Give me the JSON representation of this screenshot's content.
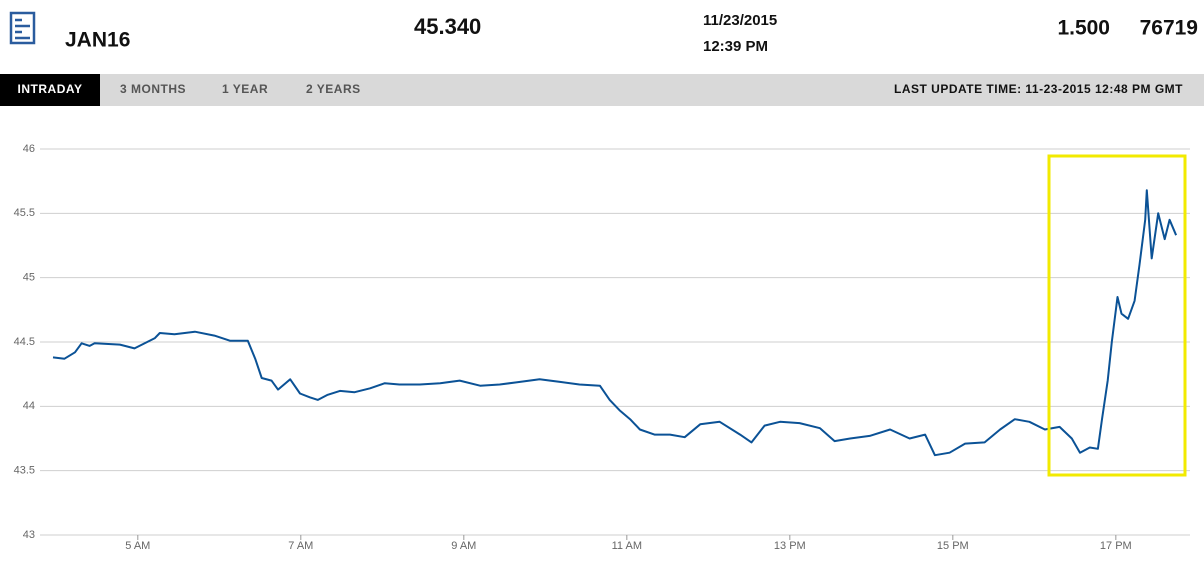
{
  "header": {
    "symbol": "JAN16",
    "price": "45.340",
    "date": "11/23/2015",
    "time": "12:39 PM",
    "change": "1.500",
    "volume": "76719"
  },
  "tabs": [
    "INTRADAY",
    "3 MONTHS",
    "1 YEAR",
    "2 YEARS"
  ],
  "last_update": "LAST UPDATE TIME: 11-23-2015 12:48 PM GMT",
  "chart_data": {
    "type": "line",
    "color": "#0b5296",
    "grid": true,
    "x": [
      3.96,
      4.1,
      4.23,
      4.31,
      4.41,
      4.47,
      4.78,
      4.96,
      5.21,
      5.27,
      5.45,
      5.7,
      5.94,
      6.13,
      6.35,
      6.44,
      6.52,
      6.64,
      6.72,
      6.87,
      6.99,
      7.11,
      7.21,
      7.33,
      7.48,
      7.66,
      7.85,
      8.03,
      8.21,
      8.46,
      8.71,
      8.95,
      9.2,
      9.44,
      9.69,
      9.93,
      10.18,
      10.42,
      10.67,
      10.79,
      10.91,
      11.04,
      11.16,
      11.34,
      11.53,
      11.71,
      11.9,
      12.14,
      12.39,
      12.53,
      12.69,
      12.88,
      13.12,
      13.37,
      13.55,
      13.74,
      13.98,
      14.23,
      14.47,
      14.66,
      14.78,
      14.96,
      15.15,
      15.39,
      15.58,
      15.76,
      15.94,
      16.13,
      16.31,
      16.46,
      16.56,
      16.68,
      16.78,
      16.83,
      16.9,
      16.95,
      17.02,
      17.07,
      17.15,
      17.23,
      17.29,
      17.36,
      17.38,
      17.44,
      17.52,
      17.6,
      17.66,
      17.74
    ],
    "values": [
      44.38,
      44.37,
      44.42,
      44.49,
      44.47,
      44.49,
      44.48,
      44.45,
      44.53,
      44.57,
      44.56,
      44.58,
      44.55,
      44.51,
      44.51,
      44.37,
      44.22,
      44.2,
      44.13,
      44.21,
      44.1,
      44.07,
      44.05,
      44.09,
      44.12,
      44.11,
      44.14,
      44.18,
      44.17,
      44.17,
      44.18,
      44.2,
      44.16,
      44.17,
      44.19,
      44.21,
      44.19,
      44.17,
      44.16,
      44.05,
      43.97,
      43.9,
      43.82,
      43.78,
      43.78,
      43.76,
      43.86,
      43.88,
      43.78,
      43.72,
      43.85,
      43.88,
      43.87,
      43.83,
      43.73,
      43.75,
      43.77,
      43.82,
      43.75,
      43.78,
      43.62,
      43.64,
      43.71,
      43.72,
      43.82,
      43.9,
      43.88,
      43.82,
      43.84,
      43.75,
      43.64,
      43.68,
      43.67,
      43.9,
      44.2,
      44.5,
      44.85,
      44.72,
      44.68,
      44.82,
      45.1,
      45.45,
      45.68,
      45.15,
      45.5,
      45.3,
      45.45,
      45.33
    ],
    "xlim": [
      3.8,
      17.91
    ],
    "xticks": [
      {
        "value": 5,
        "label": "5 AM"
      },
      {
        "value": 7,
        "label": "7 AM"
      },
      {
        "value": 9,
        "label": "9 AM"
      },
      {
        "value": 11,
        "label": "11 AM"
      },
      {
        "value": 13,
        "label": "13 PM"
      },
      {
        "value": 15,
        "label": "15 PM"
      },
      {
        "value": 17,
        "label": "17 PM"
      }
    ],
    "ylim": [
      43,
      46
    ],
    "yticks": [
      43,
      43.5,
      44,
      44.5,
      45,
      45.5,
      46
    ]
  }
}
